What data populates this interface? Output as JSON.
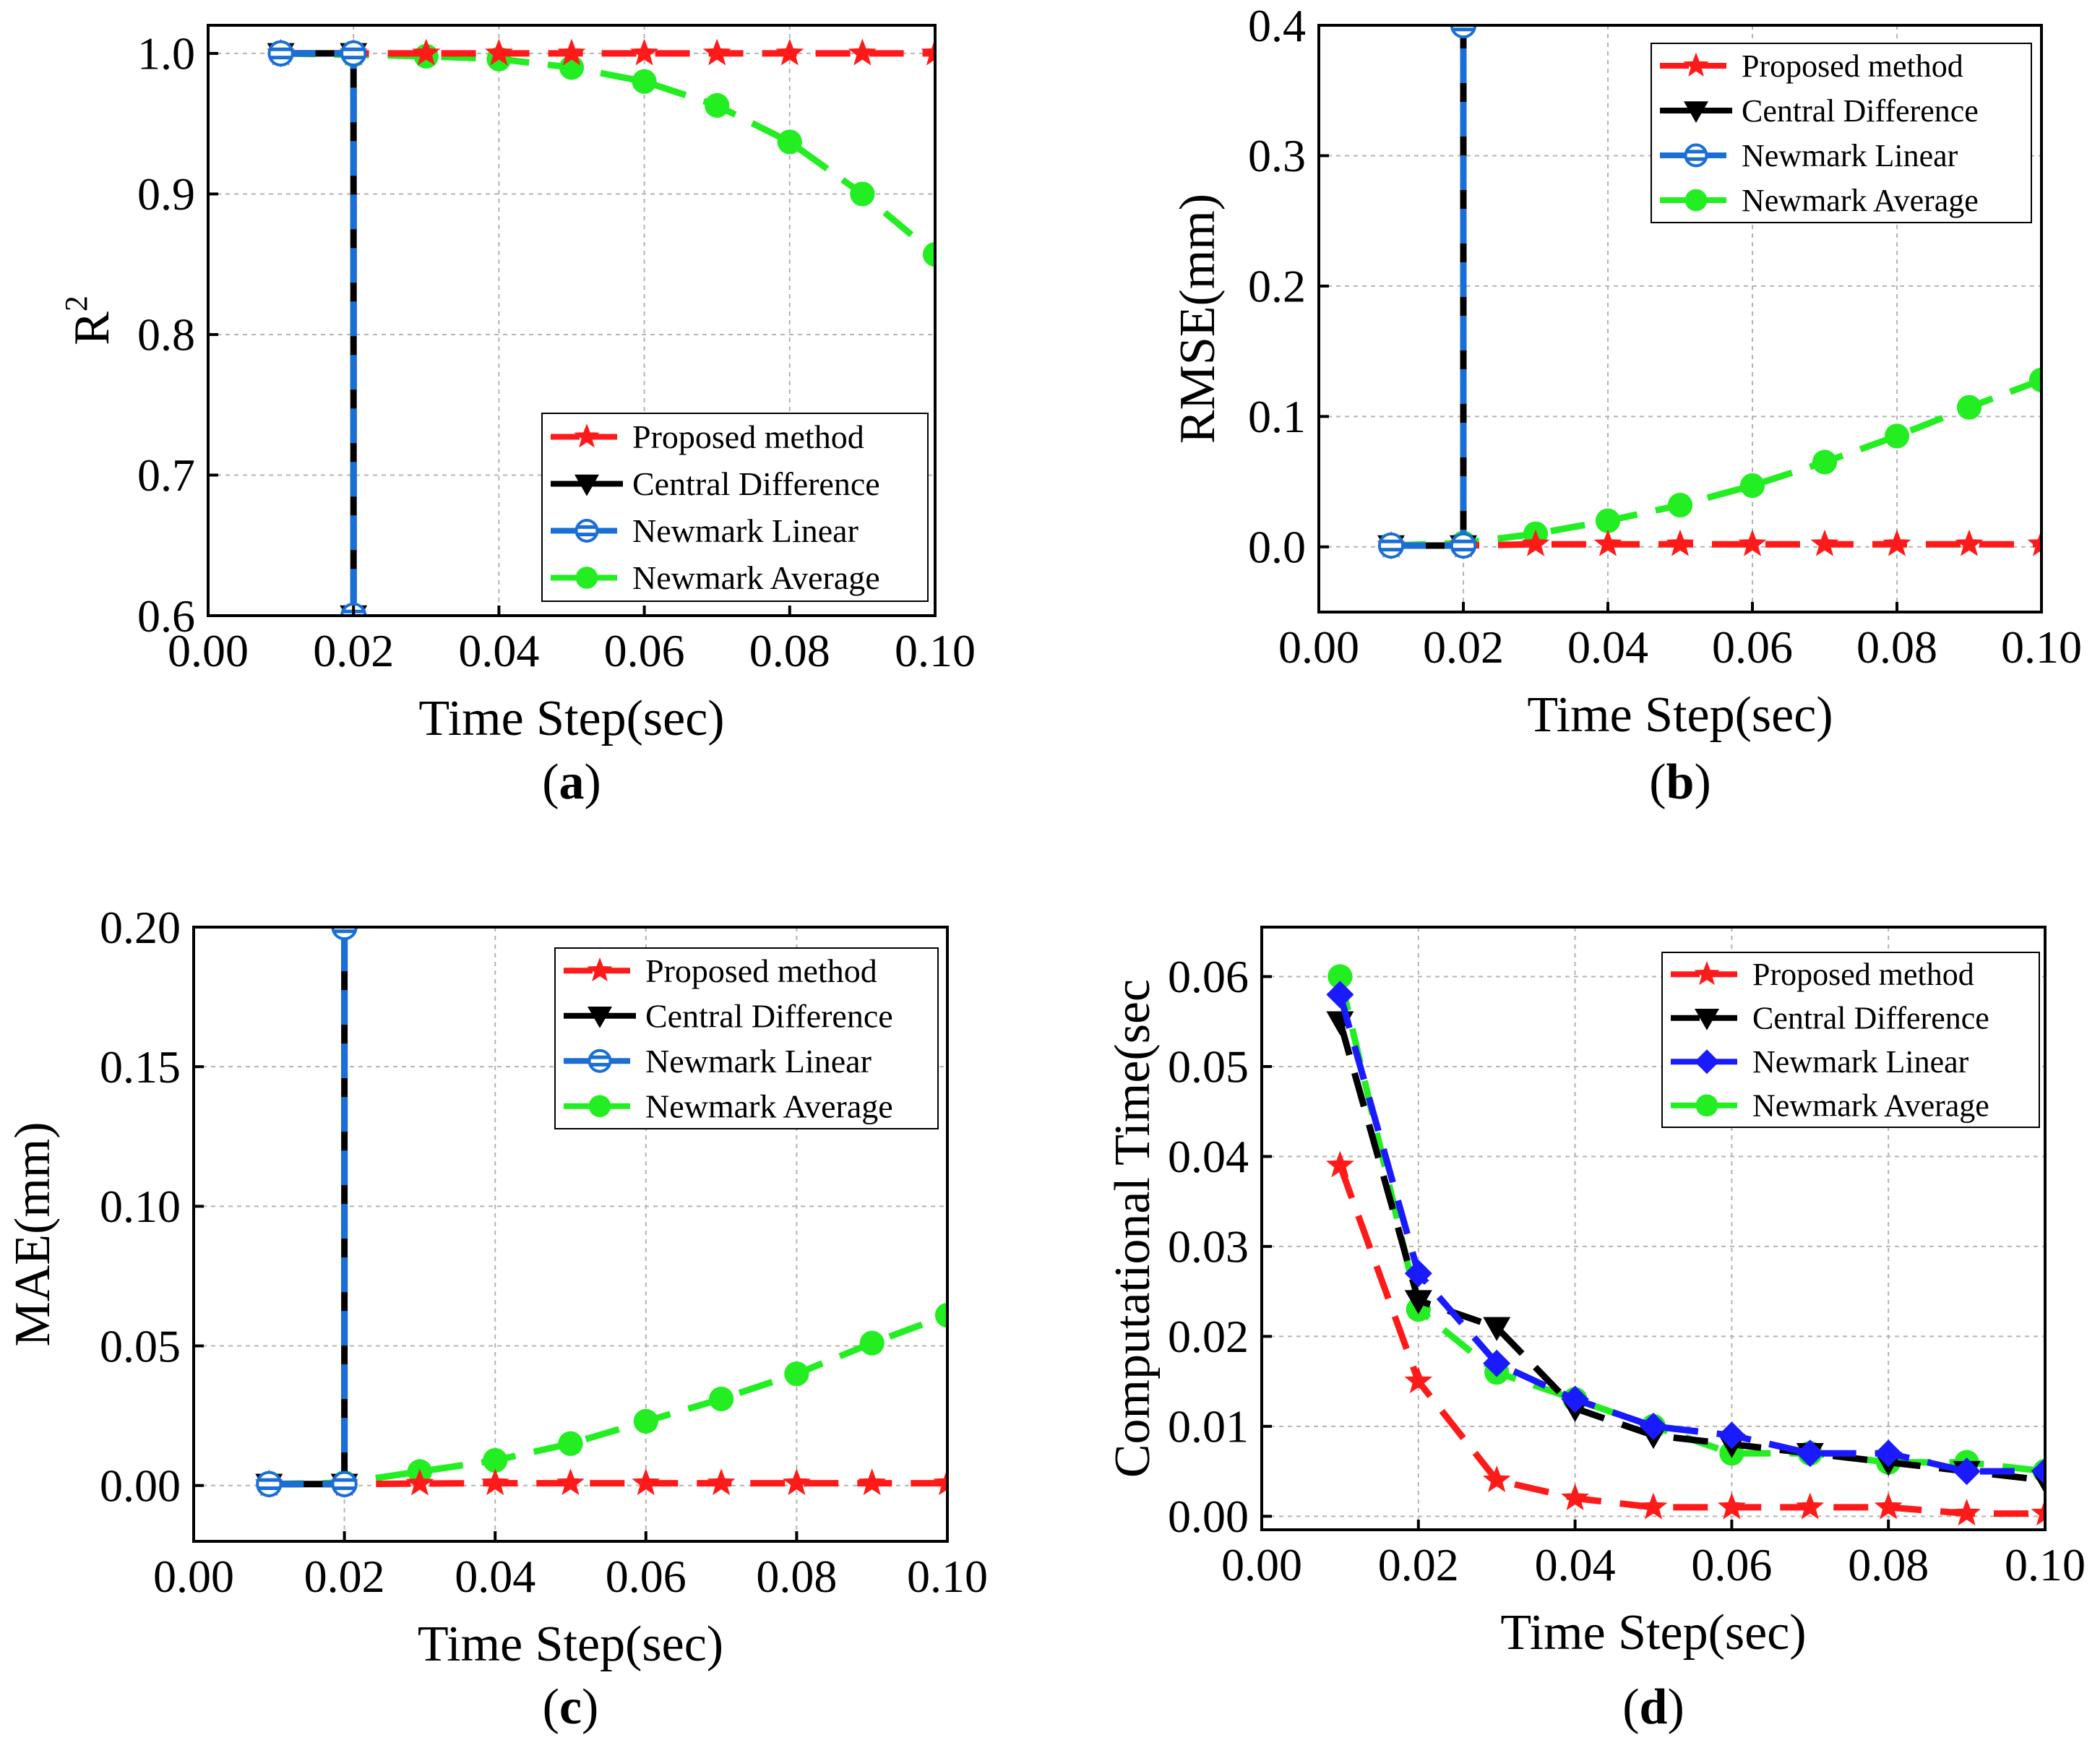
{
  "chart_data": [
    {
      "type": "line",
      "panel_label": "a",
      "ylabel_main": "R",
      "ylabel_sup": "2",
      "xlabel": "Time Step(sec)",
      "xlim": [
        0,
        0.1
      ],
      "ylim": [
        0.6,
        1.02
      ],
      "x_ticks": [
        "0.00",
        "0.02",
        "0.04",
        "0.06",
        "0.08",
        "0.10"
      ],
      "y_ticks": [
        "0.6",
        "0.7",
        "0.8",
        "0.9",
        "1.0"
      ],
      "grid": true,
      "legend_position": "bottom-right",
      "series": [
        {
          "name": "Proposed method",
          "color": "#ff1a1a",
          "marker": "star",
          "dashed": true,
          "points": [
            [
              0.01,
              1.0
            ],
            [
              0.02,
              1.0
            ],
            [
              0.03,
              1.0
            ],
            [
              0.04,
              1.0
            ],
            [
              0.05,
              1.0
            ],
            [
              0.06,
              1.0
            ],
            [
              0.07,
              1.0
            ],
            [
              0.08,
              1.0
            ],
            [
              0.09,
              1.0
            ],
            [
              0.1,
              1.0
            ]
          ]
        },
        {
          "name": "Central Difference",
          "color": "#000000",
          "marker": "triangle-down",
          "dashed": false,
          "points": [
            [
              0.01,
              1.0
            ],
            [
              0.02,
              1.0
            ],
            [
              0.02,
              0.6
            ]
          ]
        },
        {
          "name": "Newmark Linear",
          "color": "#1a6fd6",
          "marker": "circle-half",
          "dashed": true,
          "points": [
            [
              0.01,
              1.0
            ],
            [
              0.02,
              1.0
            ],
            [
              0.02,
              0.6
            ]
          ]
        },
        {
          "name": "Newmark Average",
          "color": "#22ee22",
          "marker": "circle",
          "dashed": true,
          "points": [
            [
              0.01,
              1.0
            ],
            [
              0.02,
              0.999
            ],
            [
              0.03,
              0.998
            ],
            [
              0.04,
              0.996
            ],
            [
              0.05,
              0.99
            ],
            [
              0.06,
              0.98
            ],
            [
              0.07,
              0.963
            ],
            [
              0.08,
              0.937
            ],
            [
              0.09,
              0.9
            ],
            [
              0.1,
              0.857
            ]
          ]
        }
      ]
    },
    {
      "type": "line",
      "panel_label": "b",
      "ylabel_main": "RMSE(mm)",
      "ylabel_sup": "",
      "xlabel": "Time Step(sec)",
      "xlim": [
        0,
        0.1
      ],
      "ylim": [
        -0.05,
        0.4
      ],
      "x_ticks": [
        "0.00",
        "0.02",
        "0.04",
        "0.06",
        "0.08",
        "0.10"
      ],
      "y_ticks": [
        "0.0",
        "0.1",
        "0.2",
        "0.3",
        "0.4"
      ],
      "grid": true,
      "legend_position": "top-right",
      "series": [
        {
          "name": "Proposed method",
          "color": "#ff1a1a",
          "marker": "star",
          "dashed": true,
          "points": [
            [
              0.01,
              0.001
            ],
            [
              0.02,
              0.001
            ],
            [
              0.03,
              0.002
            ],
            [
              0.04,
              0.002
            ],
            [
              0.05,
              0.002
            ],
            [
              0.06,
              0.002
            ],
            [
              0.07,
              0.002
            ],
            [
              0.08,
              0.002
            ],
            [
              0.09,
              0.002
            ],
            [
              0.1,
              0.002
            ]
          ]
        },
        {
          "name": "Central Difference",
          "color": "#000000",
          "marker": "triangle-down",
          "dashed": false,
          "points": [
            [
              0.01,
              0.001
            ],
            [
              0.02,
              0.001
            ],
            [
              0.02,
              0.4
            ]
          ]
        },
        {
          "name": "Newmark Linear",
          "color": "#1a6fd6",
          "marker": "circle-half",
          "dashed": true,
          "points": [
            [
              0.01,
              0.001
            ],
            [
              0.02,
              0.001
            ],
            [
              0.02,
              0.4
            ]
          ]
        },
        {
          "name": "Newmark Average",
          "color": "#22ee22",
          "marker": "circle",
          "dashed": true,
          "points": [
            [
              0.01,
              0.001
            ],
            [
              0.02,
              0.003
            ],
            [
              0.03,
              0.01
            ],
            [
              0.04,
              0.02
            ],
            [
              0.05,
              0.032
            ],
            [
              0.06,
              0.047
            ],
            [
              0.07,
              0.065
            ],
            [
              0.08,
              0.085
            ],
            [
              0.09,
              0.107
            ],
            [
              0.1,
              0.128
            ]
          ]
        }
      ]
    },
    {
      "type": "line",
      "panel_label": "c",
      "ylabel_main": "MAE(mm)",
      "ylabel_sup": "",
      "xlabel": "Time Step(sec)",
      "xlim": [
        0,
        0.1
      ],
      "ylim": [
        -0.02,
        0.2
      ],
      "x_ticks": [
        "0.00",
        "0.02",
        "0.04",
        "0.06",
        "0.08",
        "0.10"
      ],
      "y_ticks": [
        "0.00",
        "0.05",
        "0.10",
        "0.15",
        "0.20"
      ],
      "grid": true,
      "legend_position": "top-right",
      "series": [
        {
          "name": "Proposed method",
          "color": "#ff1a1a",
          "marker": "star",
          "dashed": true,
          "points": [
            [
              0.01,
              0.0005
            ],
            [
              0.02,
              0.0005
            ],
            [
              0.03,
              0.0007
            ],
            [
              0.04,
              0.0008
            ],
            [
              0.05,
              0.0008
            ],
            [
              0.06,
              0.0008
            ],
            [
              0.07,
              0.0008
            ],
            [
              0.08,
              0.0008
            ],
            [
              0.09,
              0.0008
            ],
            [
              0.1,
              0.0008
            ]
          ]
        },
        {
          "name": "Central Difference",
          "color": "#000000",
          "marker": "triangle-down",
          "dashed": false,
          "points": [
            [
              0.01,
              0.0005
            ],
            [
              0.02,
              0.0005
            ],
            [
              0.02,
              0.2
            ]
          ]
        },
        {
          "name": "Newmark Linear",
          "color": "#1a6fd6",
          "marker": "circle-half",
          "dashed": true,
          "points": [
            [
              0.01,
              0.0005
            ],
            [
              0.02,
              0.0005
            ],
            [
              0.02,
              0.2
            ]
          ]
        },
        {
          "name": "Newmark Average",
          "color": "#22ee22",
          "marker": "circle",
          "dashed": true,
          "points": [
            [
              0.01,
              0.0005
            ],
            [
              0.02,
              0.001
            ],
            [
              0.03,
              0.005
            ],
            [
              0.04,
              0.009
            ],
            [
              0.05,
              0.015
            ],
            [
              0.06,
              0.023
            ],
            [
              0.07,
              0.031
            ],
            [
              0.08,
              0.04
            ],
            [
              0.09,
              0.051
            ],
            [
              0.1,
              0.061
            ]
          ]
        }
      ]
    },
    {
      "type": "line",
      "panel_label": "d",
      "ylabel_main": "Computational Time(sec",
      "ylabel_sup": "",
      "xlabel": "Time Step(sec)",
      "xlim": [
        0,
        0.1
      ],
      "ylim": [
        -0.0015,
        0.0655
      ],
      "x_ticks": [
        "0.00",
        "0.02",
        "0.04",
        "0.06",
        "0.08",
        "0.10"
      ],
      "y_ticks": [
        "0.00",
        "0.01",
        "0.02",
        "0.03",
        "0.04",
        "0.05",
        "0.06"
      ],
      "grid": true,
      "legend_position": "top-right",
      "series": [
        {
          "name": "Proposed method",
          "color": "#ff1a1a",
          "marker": "star",
          "dashed": true,
          "points": [
            [
              0.01,
              0.039
            ],
            [
              0.02,
              0.015
            ],
            [
              0.03,
              0.004
            ],
            [
              0.04,
              0.002
            ],
            [
              0.05,
              0.001
            ],
            [
              0.06,
              0.001
            ],
            [
              0.07,
              0.001
            ],
            [
              0.08,
              0.001
            ],
            [
              0.09,
              0.0003
            ],
            [
              0.1,
              0.0003
            ]
          ]
        },
        {
          "name": "Central Difference",
          "color": "#000000",
          "marker": "triangle-down",
          "dashed": true,
          "points": [
            [
              0.01,
              0.055
            ],
            [
              0.02,
              0.024
            ],
            [
              0.03,
              0.021
            ],
            [
              0.04,
              0.012
            ],
            [
              0.05,
              0.009
            ],
            [
              0.06,
              0.008
            ],
            [
              0.07,
              0.007
            ],
            [
              0.08,
              0.006
            ],
            [
              0.09,
              0.005
            ],
            [
              0.1,
              0.004
            ]
          ]
        },
        {
          "name": "Newmark Linear",
          "color": "#1a1aff",
          "marker": "diamond",
          "dashed": true,
          "points": [
            [
              0.01,
              0.058
            ],
            [
              0.02,
              0.027
            ],
            [
              0.03,
              0.017
            ],
            [
              0.04,
              0.013
            ],
            [
              0.05,
              0.01
            ],
            [
              0.06,
              0.009
            ],
            [
              0.07,
              0.007
            ],
            [
              0.08,
              0.007
            ],
            [
              0.09,
              0.005
            ],
            [
              0.1,
              0.005
            ]
          ]
        },
        {
          "name": "Newmark Average",
          "color": "#22ee22",
          "marker": "circle",
          "dashed": true,
          "points": [
            [
              0.01,
              0.06
            ],
            [
              0.02,
              0.023
            ],
            [
              0.03,
              0.016
            ],
            [
              0.04,
              0.013
            ],
            [
              0.05,
              0.01
            ],
            [
              0.06,
              0.007
            ],
            [
              0.07,
              0.007
            ],
            [
              0.08,
              0.006
            ],
            [
              0.09,
              0.006
            ],
            [
              0.1,
              0.005
            ]
          ]
        }
      ]
    }
  ]
}
